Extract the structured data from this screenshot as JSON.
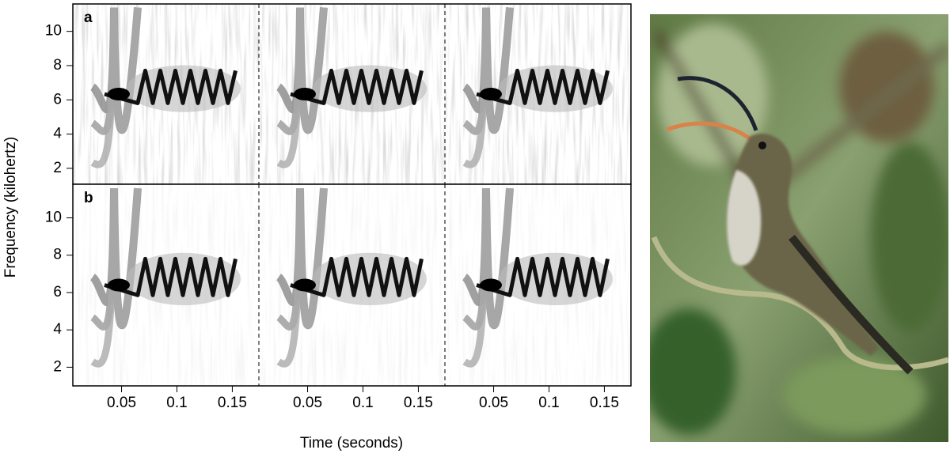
{
  "figure": {
    "y_label": "Frequency (kilohertz)",
    "x_label": "Time (seconds)",
    "panels": [
      {
        "label": "a",
        "ylim": [
          1.07,
          11.6
        ],
        "yticks": [
          2,
          4,
          6,
          8,
          10
        ]
      },
      {
        "label": "b",
        "ylim": [
          1.0,
          11.8
        ],
        "yticks": [
          2,
          4,
          6,
          8,
          10
        ]
      }
    ],
    "xlim": [
      0.006,
      0.174
    ],
    "xticks": [
      0.05,
      0.1,
      0.15
    ],
    "segments": 3
  }
}
